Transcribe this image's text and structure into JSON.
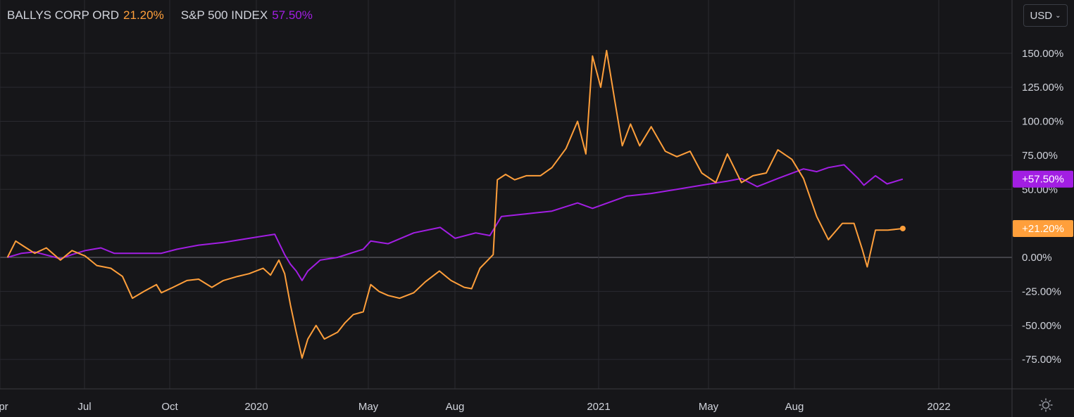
{
  "legend": {
    "series_a_name": "BALLYS CORP ORD",
    "series_a_value": "21.20%",
    "series_b_name": "S&P 500 INDEX",
    "series_b_value": "57.50%"
  },
  "currency": {
    "label": "USD"
  },
  "colors": {
    "background": "#161619",
    "grid": "#2a2a30",
    "text": "#d1d4dc",
    "bally": "#ff9f3b",
    "sp500": "#a21ee3"
  },
  "icons": {
    "currency_dropdown": "chevron-down-icon",
    "settings": "gear-icon"
  },
  "chart_data": {
    "type": "line",
    "y_unit": "%",
    "ylim": [
      -90,
      165
    ],
    "y_ticks": [
      "150.00%",
      "125.00%",
      "100.00%",
      "75.00%",
      "50.00%",
      "0.00%",
      "-25.00%",
      "-50.00%",
      "-75.00%"
    ],
    "x_ticks": [
      "Apr",
      "Jul",
      "Oct",
      "2020",
      "May",
      "Aug",
      "2021",
      "May",
      "Aug",
      "2022"
    ],
    "x_range": [
      "2019-03-20",
      "2022-07-25"
    ],
    "grid": true,
    "legend_position": "top-left",
    "last_value_labels": [
      "+57.50%",
      "+21.20%"
    ],
    "series": [
      {
        "name": "BALLYS CORP ORD",
        "color": "#ff9f3b",
        "points": [
          [
            "2019-03-29",
            0
          ],
          [
            "2019-04-08",
            12
          ],
          [
            "2019-04-18",
            8
          ],
          [
            "2019-05-01",
            3
          ],
          [
            "2019-05-15",
            7
          ],
          [
            "2019-06-01",
            -2
          ],
          [
            "2019-06-15",
            5
          ],
          [
            "2019-07-01",
            1
          ],
          [
            "2019-07-15",
            -6
          ],
          [
            "2019-08-01",
            -8
          ],
          [
            "2019-08-15",
            -14
          ],
          [
            "2019-08-27",
            -30
          ],
          [
            "2019-09-10",
            -25
          ],
          [
            "2019-09-25",
            -20
          ],
          [
            "2019-10-01",
            -26
          ],
          [
            "2019-10-15",
            -22
          ],
          [
            "2019-11-01",
            -17
          ],
          [
            "2019-11-15",
            -16
          ],
          [
            "2019-12-01",
            -22
          ],
          [
            "2019-12-15",
            -17
          ],
          [
            "2020-01-01",
            -14
          ],
          [
            "2020-01-15",
            -12
          ],
          [
            "2020-02-01",
            -8
          ],
          [
            "2020-02-10",
            -13
          ],
          [
            "2020-02-20",
            -2
          ],
          [
            "2020-02-27",
            -12
          ],
          [
            "2020-03-05",
            -35
          ],
          [
            "2020-03-12",
            -55
          ],
          [
            "2020-03-19",
            -74
          ],
          [
            "2020-03-26",
            -60
          ],
          [
            "2020-04-05",
            -50
          ],
          [
            "2020-04-15",
            -60
          ],
          [
            "2020-05-01",
            -55
          ],
          [
            "2020-05-10",
            -48
          ],
          [
            "2020-05-20",
            -42
          ],
          [
            "2020-06-01",
            -40
          ],
          [
            "2020-06-10",
            -20
          ],
          [
            "2020-06-20",
            -25
          ],
          [
            "2020-07-01",
            -28
          ],
          [
            "2020-07-15",
            -30
          ],
          [
            "2020-08-01",
            -26
          ],
          [
            "2020-08-15",
            -18
          ],
          [
            "2020-09-01",
            -10
          ],
          [
            "2020-09-15",
            -17
          ],
          [
            "2020-10-01",
            -22
          ],
          [
            "2020-10-10",
            -23
          ],
          [
            "2020-10-20",
            -8
          ],
          [
            "2020-11-05",
            2
          ],
          [
            "2020-11-10",
            57
          ],
          [
            "2020-11-20",
            61
          ],
          [
            "2020-12-01",
            57
          ],
          [
            "2020-12-15",
            60
          ],
          [
            "2021-01-01",
            60
          ],
          [
            "2021-01-15",
            66
          ],
          [
            "2021-02-01",
            80
          ],
          [
            "2021-02-15",
            100
          ],
          [
            "2021-02-25",
            76
          ],
          [
            "2021-03-05",
            148
          ],
          [
            "2021-03-15",
            125
          ],
          [
            "2021-03-22",
            152
          ],
          [
            "2021-04-01",
            115
          ],
          [
            "2021-04-10",
            82
          ],
          [
            "2021-04-20",
            98
          ],
          [
            "2021-05-01",
            82
          ],
          [
            "2021-05-15",
            96
          ],
          [
            "2021-06-01",
            78
          ],
          [
            "2021-06-15",
            74
          ],
          [
            "2021-07-01",
            78
          ],
          [
            "2021-07-15",
            62
          ],
          [
            "2021-08-01",
            55
          ],
          [
            "2021-08-15",
            76
          ],
          [
            "2021-09-01",
            55
          ],
          [
            "2021-09-15",
            60
          ],
          [
            "2021-10-01",
            62
          ],
          [
            "2021-10-15",
            79
          ],
          [
            "2021-11-01",
            72
          ],
          [
            "2021-11-15",
            58
          ],
          [
            "2021-12-01",
            30
          ],
          [
            "2021-12-15",
            13
          ],
          [
            "2022-01-01",
            25
          ],
          [
            "2022-01-15",
            25
          ],
          [
            "2022-01-25",
            6
          ],
          [
            "2022-01-31",
            -7
          ],
          [
            "2022-02-10",
            20
          ],
          [
            "2022-02-25",
            20
          ],
          [
            "2022-03-15",
            21.2
          ]
        ]
      },
      {
        "name": "S&P 500 INDEX",
        "color": "#a21ee3",
        "points": [
          [
            "2019-03-29",
            0
          ],
          [
            "2019-04-15",
            3
          ],
          [
            "2019-05-01",
            4
          ],
          [
            "2019-06-01",
            -1
          ],
          [
            "2019-06-15",
            2
          ],
          [
            "2019-07-01",
            5
          ],
          [
            "2019-07-20",
            7
          ],
          [
            "2019-08-05",
            3
          ],
          [
            "2019-09-01",
            3
          ],
          [
            "2019-10-01",
            3
          ],
          [
            "2019-10-20",
            6
          ],
          [
            "2019-11-15",
            9
          ],
          [
            "2019-12-15",
            11
          ],
          [
            "2020-01-15",
            14
          ],
          [
            "2020-02-15",
            17
          ],
          [
            "2020-02-27",
            2
          ],
          [
            "2020-03-05",
            -5
          ],
          [
            "2020-03-12",
            -10
          ],
          [
            "2020-03-19",
            -17
          ],
          [
            "2020-03-26",
            -10
          ],
          [
            "2020-04-10",
            -2
          ],
          [
            "2020-05-01",
            0
          ],
          [
            "2020-06-01",
            6
          ],
          [
            "2020-06-10",
            12
          ],
          [
            "2020-07-01",
            10
          ],
          [
            "2020-08-01",
            18
          ],
          [
            "2020-09-02",
            22
          ],
          [
            "2020-09-20",
            14
          ],
          [
            "2020-10-15",
            18
          ],
          [
            "2020-11-01",
            16
          ],
          [
            "2020-11-15",
            30
          ],
          [
            "2020-12-15",
            32
          ],
          [
            "2021-01-15",
            34
          ],
          [
            "2021-02-15",
            40
          ],
          [
            "2021-03-05",
            36
          ],
          [
            "2021-04-15",
            45
          ],
          [
            "2021-05-15",
            47
          ],
          [
            "2021-06-15",
            50
          ],
          [
            "2021-07-15",
            53
          ],
          [
            "2021-08-15",
            56
          ],
          [
            "2021-09-01",
            58
          ],
          [
            "2021-09-20",
            52
          ],
          [
            "2021-10-15",
            58
          ],
          [
            "2021-11-15",
            65
          ],
          [
            "2021-12-01",
            63
          ],
          [
            "2021-12-15",
            66
          ],
          [
            "2022-01-03",
            68
          ],
          [
            "2022-01-20",
            58
          ],
          [
            "2022-01-27",
            53
          ],
          [
            "2022-02-10",
            60
          ],
          [
            "2022-02-24",
            54
          ],
          [
            "2022-03-15",
            57.5
          ]
        ]
      }
    ]
  }
}
